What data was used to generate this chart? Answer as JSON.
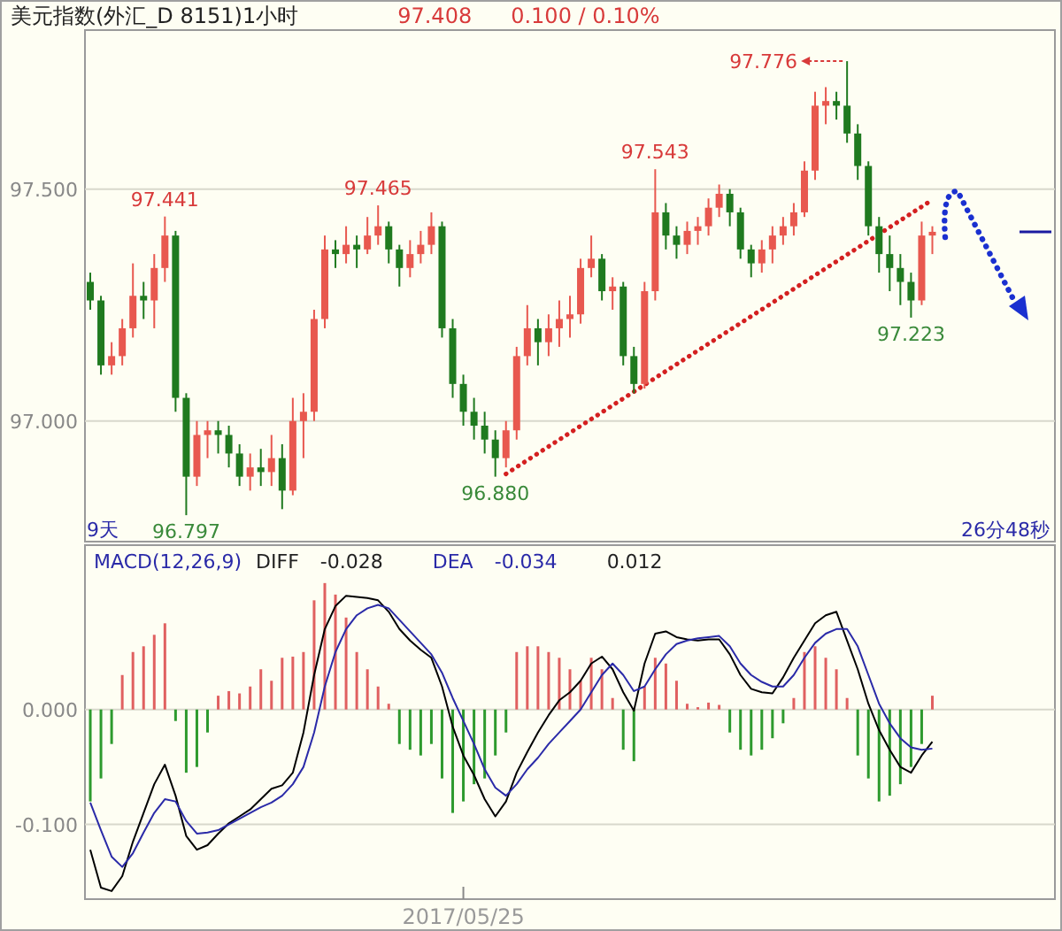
{
  "chart_data": [
    {
      "type": "candlestick",
      "title": "美元指数(外汇_D 8151)1小时",
      "categories": [
        null,
        null,
        null,
        null,
        null,
        null,
        null,
        null,
        null,
        null,
        null,
        null,
        null,
        null,
        null,
        null,
        null,
        null,
        null,
        null,
        null,
        null,
        null,
        null,
        null,
        null,
        null,
        null,
        null,
        null,
        null,
        null,
        null,
        null,
        null,
        null,
        null,
        null,
        null,
        null,
        null,
        null,
        null,
        null,
        null,
        null,
        null,
        null,
        null,
        null,
        null,
        null,
        null,
        null,
        null,
        null,
        null,
        null,
        null,
        null,
        null,
        null,
        null,
        null,
        null,
        null,
        null,
        null,
        null,
        null,
        null,
        null,
        null,
        null,
        null,
        null,
        null,
        null,
        null,
        null
      ],
      "ylim": [
        96.74,
        97.843
      ],
      "yticks": [
        {
          "value": 97,
          "label": "97.000"
        },
        {
          "value": 97.5,
          "label": "97.500"
        }
      ],
      "tick_labels": "y",
      "grid": "y",
      "ohlc": [
        [
          97.3,
          97.32,
          97.24,
          97.26
        ],
        [
          97.26,
          97.27,
          97.1,
          97.12
        ],
        [
          97.12,
          97.17,
          97.1,
          97.14
        ],
        [
          97.14,
          97.22,
          97.12,
          97.2
        ],
        [
          97.2,
          97.34,
          97.18,
          97.27
        ],
        [
          97.27,
          97.3,
          97.22,
          97.26
        ],
        [
          97.26,
          97.36,
          97.2,
          97.33
        ],
        [
          97.33,
          97.441,
          97.3,
          97.4
        ],
        [
          97.4,
          97.41,
          97.02,
          97.05
        ],
        [
          97.05,
          97.06,
          96.797,
          96.88
        ],
        [
          96.88,
          97.0,
          96.86,
          96.97
        ],
        [
          96.97,
          97.0,
          96.92,
          96.98
        ],
        [
          96.98,
          97.0,
          96.93,
          96.97
        ],
        [
          96.97,
          96.99,
          96.9,
          96.93
        ],
        [
          96.93,
          96.95,
          96.86,
          96.88
        ],
        [
          96.88,
          96.93,
          96.85,
          96.9
        ],
        [
          96.9,
          96.94,
          96.86,
          96.89
        ],
        [
          96.89,
          96.97,
          96.86,
          96.92
        ],
        [
          96.92,
          96.95,
          96.81,
          96.85
        ],
        [
          96.85,
          97.05,
          96.84,
          97.0
        ],
        [
          97.0,
          97.06,
          96.92,
          97.02
        ],
        [
          97.02,
          97.24,
          97.0,
          97.22
        ],
        [
          97.22,
          97.4,
          97.2,
          97.37
        ],
        [
          97.37,
          97.39,
          97.33,
          97.36
        ],
        [
          97.36,
          97.42,
          97.34,
          97.38
        ],
        [
          97.38,
          97.4,
          97.33,
          97.37
        ],
        [
          97.37,
          97.44,
          97.36,
          97.4
        ],
        [
          97.4,
          97.465,
          97.38,
          97.42
        ],
        [
          97.42,
          97.43,
          97.34,
          97.37
        ],
        [
          97.37,
          97.38,
          97.29,
          97.33
        ],
        [
          97.33,
          97.39,
          97.31,
          97.36
        ],
        [
          97.36,
          97.41,
          97.34,
          97.38
        ],
        [
          97.38,
          97.45,
          97.36,
          97.42
        ],
        [
          97.42,
          97.43,
          97.18,
          97.2
        ],
        [
          97.2,
          97.22,
          97.05,
          97.08
        ],
        [
          97.08,
          97.1,
          96.99,
          97.02
        ],
        [
          97.02,
          97.05,
          96.96,
          96.99
        ],
        [
          96.99,
          97.02,
          96.93,
          96.96
        ],
        [
          96.96,
          96.98,
          96.88,
          96.92
        ],
        [
          96.92,
          97.0,
          96.9,
          96.98
        ],
        [
          96.98,
          97.16,
          96.96,
          97.14
        ],
        [
          97.14,
          97.25,
          97.12,
          97.2
        ],
        [
          97.2,
          97.22,
          97.12,
          97.17
        ],
        [
          97.17,
          97.23,
          97.14,
          97.2
        ],
        [
          97.2,
          97.26,
          97.16,
          97.22
        ],
        [
          97.22,
          97.27,
          97.18,
          97.23
        ],
        [
          97.23,
          97.35,
          97.21,
          97.33
        ],
        [
          97.33,
          97.4,
          97.31,
          97.35
        ],
        [
          97.35,
          97.36,
          97.26,
          97.28
        ],
        [
          97.28,
          97.31,
          97.24,
          97.29
        ],
        [
          97.29,
          97.3,
          97.12,
          97.14
        ],
        [
          97.14,
          97.16,
          97.06,
          97.08
        ],
        [
          97.08,
          97.3,
          97.07,
          97.28
        ],
        [
          97.28,
          97.543,
          97.26,
          97.45
        ],
        [
          97.45,
          97.47,
          97.37,
          97.4
        ],
        [
          97.4,
          97.42,
          97.35,
          97.38
        ],
        [
          97.38,
          97.43,
          97.36,
          97.41
        ],
        [
          97.41,
          97.44,
          97.38,
          97.42
        ],
        [
          97.42,
          97.48,
          97.4,
          97.46
        ],
        [
          97.46,
          97.51,
          97.44,
          97.49
        ],
        [
          97.49,
          97.5,
          97.42,
          97.45
        ],
        [
          97.45,
          97.46,
          97.35,
          97.37
        ],
        [
          97.37,
          97.38,
          97.31,
          97.34
        ],
        [
          97.34,
          97.39,
          97.32,
          97.37
        ],
        [
          97.37,
          97.42,
          97.34,
          97.4
        ],
        [
          97.4,
          97.44,
          97.38,
          97.42
        ],
        [
          97.42,
          97.47,
          97.4,
          97.45
        ],
        [
          97.45,
          97.56,
          97.44,
          97.54
        ],
        [
          97.54,
          97.71,
          97.52,
          97.68
        ],
        [
          97.68,
          97.72,
          97.64,
          97.69
        ],
        [
          97.69,
          97.71,
          97.65,
          97.68
        ],
        [
          97.68,
          97.776,
          97.6,
          97.62
        ],
        [
          97.62,
          97.64,
          97.52,
          97.55
        ],
        [
          97.55,
          97.56,
          97.4,
          97.42
        ],
        [
          97.42,
          97.44,
          97.32,
          97.36
        ],
        [
          97.36,
          97.4,
          97.28,
          97.33
        ],
        [
          97.33,
          97.36,
          97.25,
          97.3
        ],
        [
          97.3,
          97.32,
          97.223,
          97.26
        ],
        [
          97.26,
          97.43,
          97.25,
          97.4
        ],
        [
          97.4,
          97.42,
          97.36,
          97.408
        ]
      ],
      "colors": [
        "#1f7a1f",
        "#1f7a1f",
        "#e8584f",
        "#e8584f",
        "#e8584f",
        "#1f7a1f",
        "#e8584f",
        "#e8584f",
        "#1f7a1f",
        "#1f7a1f",
        "#e8584f",
        "#e8584f",
        "#1f7a1f",
        "#1f7a1f",
        "#1f7a1f",
        "#e8584f",
        "#1f7a1f",
        "#e8584f",
        "#1f7a1f",
        "#e8584f",
        "#e8584f",
        "#e8584f",
        "#e8584f",
        "#1f7a1f",
        "#e8584f",
        "#1f7a1f",
        "#e8584f",
        "#e8584f",
        "#1f7a1f",
        "#1f7a1f",
        "#e8584f",
        "#e8584f",
        "#e8584f",
        "#1f7a1f",
        "#1f7a1f",
        "#1f7a1f",
        "#1f7a1f",
        "#1f7a1f",
        "#1f7a1f",
        "#e8584f",
        "#e8584f",
        "#e8584f",
        "#1f7a1f",
        "#e8584f",
        "#e8584f",
        "#e8584f",
        "#e8584f",
        "#e8584f",
        "#1f7a1f",
        "#e8584f",
        "#1f7a1f",
        "#1f7a1f",
        "#e8584f",
        "#e8584f",
        "#1f7a1f",
        "#1f7a1f",
        "#e8584f",
        "#e8584f",
        "#e8584f",
        "#e8584f",
        "#1f7a1f",
        "#1f7a1f",
        "#1f7a1f",
        "#e8584f",
        "#e8584f",
        "#e8584f",
        "#e8584f",
        "#e8584f",
        "#e8584f",
        "#e8584f",
        "#1f7a1f",
        "#1f7a1f",
        "#1f7a1f",
        "#1f7a1f",
        "#1f7a1f",
        "#1f7a1f",
        "#1f7a1f",
        "#1f7a1f",
        "#e8584f",
        "#e8584f"
      ],
      "series": [
        {
          "type": "line",
          "values": [
            null,
            null,
            null,
            null,
            null,
            null,
            null,
            null,
            null,
            null,
            null,
            null,
            null,
            null,
            null,
            null,
            null,
            null,
            null,
            null,
            null,
            null,
            null,
            null,
            null,
            null,
            null,
            null,
            null,
            null,
            null,
            null,
            null,
            null,
            null,
            null,
            null,
            null,
            null,
            96.886,
            null,
            null,
            null,
            null,
            null,
            null,
            null,
            null,
            null,
            null,
            null,
            null,
            null,
            null,
            null,
            null,
            null,
            null,
            null,
            null,
            null,
            null,
            null,
            null,
            null,
            null,
            null,
            null,
            null,
            null,
            null,
            null,
            null,
            null,
            null,
            null,
            null,
            null,
            null,
            97.477
          ],
          "color": "#d42020",
          "line_style": "dotted"
        }
      ],
      "annotations": [
        "97.408",
        "0.100 / 0.10%",
        "9天",
        "26分48秒",
        "97.776",
        {
          "text": "97.441",
          "y": 97.441
        },
        {
          "text": "96.797",
          "y": 96.797
        },
        {
          "text": "97.465",
          "y": 97.465
        },
        {
          "text": "96.880",
          "y": 96.88
        },
        {
          "text": "97.543",
          "y": 97.543
        },
        {
          "text": "97.223",
          "y": 97.223
        }
      ]
    },
    {
      "type": "bar",
      "title": "MACD(12,26,9)",
      "categories": [
        null,
        null,
        null,
        null,
        null,
        null,
        null,
        null,
        null,
        null,
        null,
        null,
        null,
        null,
        null,
        null,
        null,
        null,
        null,
        null,
        null,
        null,
        null,
        null,
        null,
        null,
        null,
        null,
        null,
        null,
        null,
        null,
        null,
        null,
        null,
        "2017/05/25",
        null,
        null,
        null,
        null,
        null,
        null,
        null,
        null,
        null,
        null,
        null,
        null,
        null,
        null,
        null,
        null,
        null,
        null,
        null,
        null,
        null,
        null,
        null,
        null,
        null,
        null,
        null,
        null,
        null,
        null,
        null,
        null,
        null,
        null,
        null,
        null,
        null,
        null,
        null,
        null,
        null,
        null,
        null,
        null
      ],
      "ylim": [
        -0.165,
        0.143
      ],
      "yticks": [
        {
          "value": 0,
          "label": "0.000"
        },
        {
          "value": -0.1,
          "label": "-0.100"
        }
      ],
      "grid": "y",
      "legend": "top left",
      "series": [
        {
          "type": "bar",
          "values": [
            -0.08,
            -0.06,
            -0.03,
            0.03,
            0.05,
            0.055,
            0.065,
            0.075,
            -0.01,
            -0.055,
            -0.05,
            -0.02,
            0.012,
            0.016,
            0.014,
            0.02,
            0.035,
            0.025,
            0.045,
            0.046,
            0.05,
            0.095,
            0.11,
            0.1,
            0.08,
            0.05,
            0.035,
            0.02,
            0.005,
            -0.03,
            -0.035,
            -0.04,
            -0.03,
            -0.06,
            -0.09,
            -0.08,
            -0.065,
            -0.06,
            -0.04,
            -0.02,
            0.05,
            0.055,
            0.055,
            0.05,
            0.045,
            0.035,
            0.025,
            0.045,
            0.035,
            0.01,
            -0.035,
            -0.045,
            0.02,
            0.045,
            0.04,
            0.025,
            0.005,
            0.002,
            0.006,
            0.004,
            -0.02,
            -0.035,
            -0.04,
            -0.035,
            -0.025,
            -0.012,
            0.01,
            0.05,
            0.055,
            0.045,
            0.035,
            0.01,
            -0.04,
            -0.06,
            -0.08,
            -0.075,
            -0.065,
            -0.05,
            -0.03,
            0.012
          ],
          "colors": [
            "#2e9a2e",
            "#2e9a2e",
            "#2e9a2e",
            "#e06060",
            "#e06060",
            "#e06060",
            "#e06060",
            "#e06060",
            "#2e9a2e",
            "#2e9a2e",
            "#2e9a2e",
            "#2e9a2e",
            "#e06060",
            "#e06060",
            "#e06060",
            "#e06060",
            "#e06060",
            "#e06060",
            "#e06060",
            "#e06060",
            "#e06060",
            "#e06060",
            "#e06060",
            "#e06060",
            "#e06060",
            "#e06060",
            "#e06060",
            "#e06060",
            "#e06060",
            "#2e9a2e",
            "#2e9a2e",
            "#2e9a2e",
            "#2e9a2e",
            "#2e9a2e",
            "#2e9a2e",
            "#2e9a2e",
            "#2e9a2e",
            "#2e9a2e",
            "#2e9a2e",
            "#2e9a2e",
            "#e06060",
            "#e06060",
            "#e06060",
            "#e06060",
            "#e06060",
            "#e06060",
            "#e06060",
            "#e06060",
            "#e06060",
            "#e06060",
            "#2e9a2e",
            "#2e9a2e",
            "#e06060",
            "#e06060",
            "#e06060",
            "#e06060",
            "#e06060",
            "#e06060",
            "#e06060",
            "#e06060",
            "#2e9a2e",
            "#2e9a2e",
            "#2e9a2e",
            "#2e9a2e",
            "#2e9a2e",
            "#2e9a2e",
            "#e06060",
            "#e06060",
            "#e06060",
            "#e06060",
            "#e06060",
            "#e06060",
            "#2e9a2e",
            "#2e9a2e",
            "#2e9a2e",
            "#2e9a2e",
            "#2e9a2e",
            "#2e9a2e",
            "#2e9a2e",
            "#e06060"
          ]
        },
        {
          "name": "DIFF",
          "type": "line",
          "color": "#000000",
          "values": [
            -0.122,
            -0.155,
            -0.158,
            -0.145,
            -0.115,
            -0.09,
            -0.065,
            -0.048,
            -0.075,
            -0.11,
            -0.122,
            -0.118,
            -0.108,
            -0.099,
            -0.093,
            -0.087,
            -0.078,
            -0.069,
            -0.066,
            -0.055,
            -0.02,
            0.03,
            0.07,
            0.09,
            0.099,
            0.098,
            0.097,
            0.095,
            0.085,
            0.07,
            0.06,
            0.052,
            0.045,
            0.02,
            -0.015,
            -0.04,
            -0.057,
            -0.078,
            -0.093,
            -0.08,
            -0.055,
            -0.037,
            -0.02,
            -0.005,
            0.008,
            0.015,
            0.025,
            0.04,
            0.046,
            0.035,
            0.015,
            -0.001,
            0.04,
            0.066,
            0.068,
            0.063,
            0.061,
            0.06,
            0.061,
            0.061,
            0.048,
            0.03,
            0.018,
            0.015,
            0.014,
            0.028,
            0.045,
            0.06,
            0.075,
            0.082,
            0.085,
            0.06,
            0.035,
            0.005,
            -0.018,
            -0.035,
            -0.05,
            -0.055,
            -0.04,
            -0.028
          ]
        },
        {
          "name": "DEA",
          "type": "line",
          "color": "#2a2aa8",
          "values": [
            -0.081,
            -0.105,
            -0.128,
            -0.137,
            -0.125,
            -0.107,
            -0.09,
            -0.078,
            -0.08,
            -0.097,
            -0.108,
            -0.107,
            -0.105,
            -0.1,
            -0.095,
            -0.09,
            -0.085,
            -0.081,
            -0.075,
            -0.065,
            -0.05,
            -0.02,
            0.02,
            0.05,
            0.07,
            0.082,
            0.088,
            0.091,
            0.088,
            0.078,
            0.068,
            0.058,
            0.048,
            0.032,
            0.01,
            -0.01,
            -0.03,
            -0.052,
            -0.068,
            -0.075,
            -0.065,
            -0.052,
            -0.042,
            -0.03,
            -0.02,
            -0.01,
            0.0,
            0.015,
            0.03,
            0.04,
            0.03,
            0.016,
            0.02,
            0.035,
            0.048,
            0.057,
            0.06,
            0.062,
            0.063,
            0.064,
            0.055,
            0.04,
            0.03,
            0.024,
            0.02,
            0.02,
            0.03,
            0.045,
            0.058,
            0.066,
            0.07,
            0.07,
            0.055,
            0.03,
            0.005,
            -0.012,
            -0.025,
            -0.033,
            -0.035,
            -0.034
          ]
        }
      ],
      "annotations": [
        "-0.028",
        "-0.034",
        "0.012"
      ]
    }
  ]
}
